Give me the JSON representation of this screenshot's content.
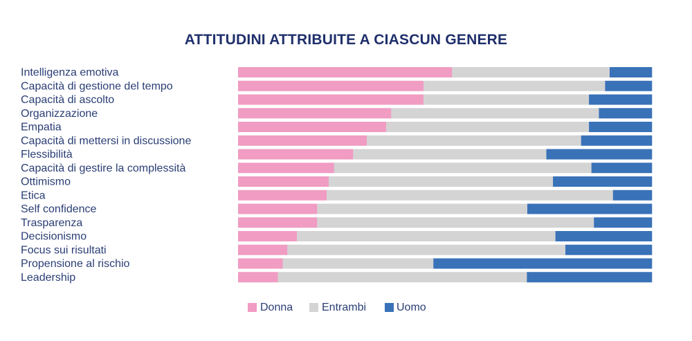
{
  "chart_data": {
    "type": "bar",
    "orientation": "horizontal",
    "stacked": true,
    "normalized": true,
    "title": "ATTITUDINI ATTRIBUITE A CIASCUN GENERE",
    "xlim": [
      0,
      1
    ],
    "grid": false,
    "legend_position": "bottom",
    "categories": [
      "Intelligenza emotiva",
      "Capacità di gestione del tempo",
      "Capacità di ascolto",
      "Organizzazione",
      "Empatia",
      "Capacità di mettersi in discussione",
      "Flessibilità",
      "Capacità di gestire la complessità",
      "Ottimismo",
      "Etica",
      "Self confidence",
      "Trasparenza",
      "Decisionismo",
      "Focus sui risultati",
      "Propensione al rischio",
      "Leadership"
    ],
    "series": [
      {
        "name": "Donna",
        "color": "#f09cc3",
        "values": [
          0.517,
          0.448,
          0.448,
          0.37,
          0.358,
          0.311,
          0.278,
          0.232,
          0.219,
          0.214,
          0.191,
          0.191,
          0.142,
          0.119,
          0.108,
          0.096
        ]
      },
      {
        "name": "Entrambi",
        "color": "#d4d4d4",
        "values": [
          0.381,
          0.439,
          0.4,
          0.502,
          0.49,
          0.518,
          0.467,
          0.622,
          0.542,
          0.692,
          0.508,
          0.669,
          0.625,
          0.672,
          0.364,
          0.602
        ]
      },
      {
        "name": "Uomo",
        "color": "#3a72b8",
        "values": [
          0.102,
          0.113,
          0.152,
          0.128,
          0.152,
          0.171,
          0.255,
          0.146,
          0.239,
          0.094,
          0.301,
          0.14,
          0.233,
          0.209,
          0.528,
          0.302
        ]
      }
    ]
  }
}
